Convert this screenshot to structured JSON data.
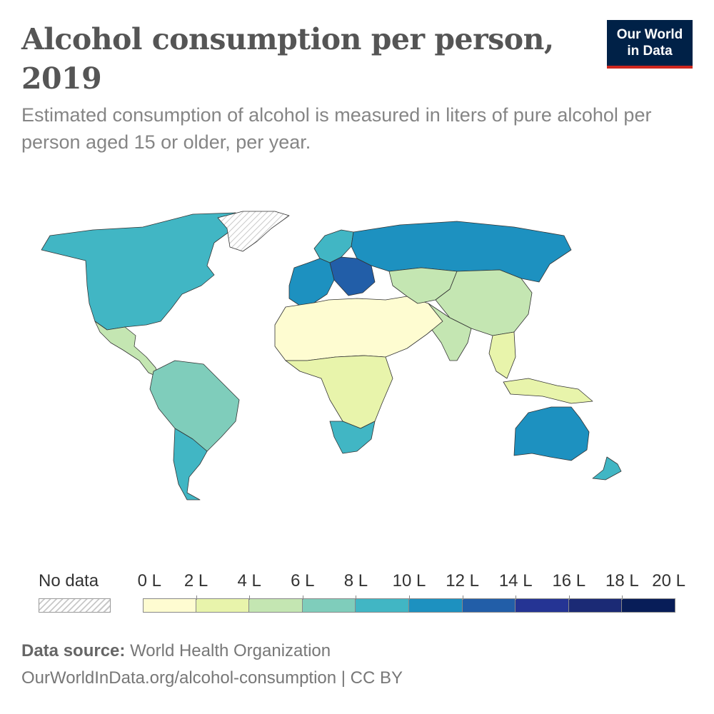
{
  "header": {
    "title": "Alcohol consumption per person, 2019",
    "subtitle": "Estimated consumption of alcohol is measured in liters of pure alcohol per person aged 15 or older, per year.",
    "logo_line1": "Our World",
    "logo_line2": "in Data"
  },
  "legend": {
    "nodata_label": "No data",
    "ticks": [
      "0 L",
      "2 L",
      "4 L",
      "6 L",
      "8 L",
      "10 L",
      "12 L",
      "14 L",
      "16 L",
      "18 L",
      "20 L"
    ],
    "bins": [
      {
        "min": 0,
        "max": 2,
        "color": "#fefcd1"
      },
      {
        "min": 2,
        "max": 4,
        "color": "#e8f4ab"
      },
      {
        "min": 4,
        "max": 6,
        "color": "#c4e6b2"
      },
      {
        "min": 6,
        "max": 8,
        "color": "#7fcdbb"
      },
      {
        "min": 8,
        "max": 10,
        "color": "#41b6c4"
      },
      {
        "min": 10,
        "max": 12,
        "color": "#1d91c0"
      },
      {
        "min": 12,
        "max": 14,
        "color": "#225ea8"
      },
      {
        "min": 14,
        "max": 16,
        "color": "#253494"
      },
      {
        "min": 16,
        "max": 18,
        "color": "#1b2a75"
      },
      {
        "min": 18,
        "max": 20,
        "color": "#081d58"
      }
    ]
  },
  "map_data": {
    "regions": [
      {
        "name": "north-america",
        "value_bin": 4,
        "color": "#41b6c4"
      },
      {
        "name": "greenland",
        "value_bin": null,
        "color": "nodata"
      },
      {
        "name": "mexico-central-america",
        "value_bin": 2,
        "color": "#c4e6b2"
      },
      {
        "name": "south-america",
        "value_bin": 3,
        "color": "#7fcdbb"
      },
      {
        "name": "argentina-chile",
        "value_bin": 4,
        "color": "#41b6c4"
      },
      {
        "name": "western-europe",
        "value_bin": 5,
        "color": "#1d91c0"
      },
      {
        "name": "eastern-europe",
        "value_bin": 6,
        "color": "#225ea8"
      },
      {
        "name": "scandinavia",
        "value_bin": 4,
        "color": "#41b6c4"
      },
      {
        "name": "russia",
        "value_bin": 5,
        "color": "#1d91c0"
      },
      {
        "name": "north-africa-middle-east",
        "value_bin": 0,
        "color": "#fefcd1"
      },
      {
        "name": "sub-saharan-africa",
        "value_bin": 1,
        "color": "#e8f4ab"
      },
      {
        "name": "southern-africa",
        "value_bin": 4,
        "color": "#41b6c4"
      },
      {
        "name": "central-asia",
        "value_bin": 2,
        "color": "#c4e6b2"
      },
      {
        "name": "china",
        "value_bin": 2,
        "color": "#c4e6b2"
      },
      {
        "name": "india",
        "value_bin": 2,
        "color": "#c4e6b2"
      },
      {
        "name": "southeast-asia",
        "value_bin": 1,
        "color": "#e8f4ab"
      },
      {
        "name": "australia",
        "value_bin": 5,
        "color": "#1d91c0"
      },
      {
        "name": "new-zealand",
        "value_bin": 4,
        "color": "#41b6c4"
      }
    ]
  },
  "footer": {
    "source_label": "Data source:",
    "source_value": "World Health Organization",
    "url_line": "OurWorldInData.org/alcohol-consumption | CC BY"
  }
}
